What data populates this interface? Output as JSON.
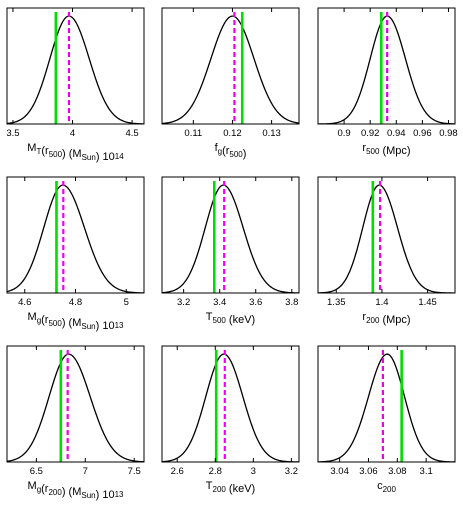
{
  "chart_data": [
    {
      "type": "line",
      "xlabel": "M_T(r_500) (M_Sun) 10^14",
      "xlabel_parts": [
        {
          "t": "M"
        },
        {
          "t": "T",
          "s": "sub"
        },
        {
          "t": "(r"
        },
        {
          "t": "500",
          "s": "sub"
        },
        {
          "t": ")  (M"
        },
        {
          "t": "Sun",
          "s": "sub"
        },
        {
          "t": ")  10"
        },
        {
          "t": "14",
          "s": "exp"
        }
      ],
      "xlim": [
        3.45,
        4.6
      ],
      "xticks": [
        3.5,
        4,
        4.5
      ],
      "xtick_labels": [
        "3.5",
        "4",
        "4.5"
      ],
      "peak_x": 3.97,
      "sigma_left": 0.16,
      "sigma_right": 0.17,
      "green_line_x": 3.86,
      "magenta_line_x": 3.97
    },
    {
      "type": "line",
      "xlabel": "f_g(r_500)",
      "xlabel_parts": [
        {
          "t": "f"
        },
        {
          "t": "g",
          "s": "sub"
        },
        {
          "t": "(r"
        },
        {
          "t": "500",
          "s": "sub"
        },
        {
          "t": ")"
        }
      ],
      "xlim": [
        0.102,
        0.137
      ],
      "xticks": [
        0.11,
        0.12,
        0.13
      ],
      "xtick_labels": [
        "0.11",
        "0.12",
        "0.13"
      ],
      "peak_x": 0.12,
      "sigma_left": 0.0055,
      "sigma_right": 0.0055,
      "green_line_x": 0.1225,
      "magenta_line_x": 0.1205
    },
    {
      "type": "line",
      "xlabel": "r_500 (Mpc)",
      "xlabel_parts": [
        {
          "t": "r"
        },
        {
          "t": "500",
          "s": "sub"
        },
        {
          "t": "  (Mpc)"
        }
      ],
      "xlim": [
        0.88,
        0.985
      ],
      "xticks": [
        0.9,
        0.92,
        0.94,
        0.96,
        0.98
      ],
      "xtick_labels": [
        "0.9",
        "0.92",
        "0.94",
        "0.96",
        "0.98"
      ],
      "peak_x": 0.933,
      "sigma_left": 0.013,
      "sigma_right": 0.014,
      "green_line_x": 0.9285,
      "magenta_line_x": 0.933
    },
    {
      "type": "line",
      "xlabel": "M_g(r_500) (M_Sun) 10^13",
      "xlabel_parts": [
        {
          "t": "M"
        },
        {
          "t": "g",
          "s": "sub"
        },
        {
          "t": "(r"
        },
        {
          "t": "500",
          "s": "sub"
        },
        {
          "t": ")  (M"
        },
        {
          "t": "Sun",
          "s": "sub"
        },
        {
          "t": ")  10"
        },
        {
          "t": "13",
          "s": "exp"
        }
      ],
      "xlim": [
        4.53,
        5.07
      ],
      "xticks": [
        4.6,
        4.8,
        5
      ],
      "xtick_labels": [
        "4.6",
        "4.8",
        "5"
      ],
      "peak_x": 4.75,
      "sigma_left": 0.075,
      "sigma_right": 0.085,
      "green_line_x": 4.725,
      "magenta_line_x": 4.752
    },
    {
      "type": "line",
      "xlabel": "T_500 (keV)",
      "xlabel_parts": [
        {
          "t": "T"
        },
        {
          "t": "500",
          "s": "sub"
        },
        {
          "t": "  (keV)"
        }
      ],
      "xlim": [
        3.08,
        3.84
      ],
      "xticks": [
        3.2,
        3.4,
        3.6,
        3.8
      ],
      "xtick_labels": [
        "3.2",
        "3.4",
        "3.6",
        "3.8"
      ],
      "peak_x": 3.42,
      "sigma_left": 0.1,
      "sigma_right": 0.11,
      "green_line_x": 3.37,
      "magenta_line_x": 3.425
    },
    {
      "type": "line",
      "xlabel": "r_200 (Mpc)",
      "xlabel_parts": [
        {
          "t": "r"
        },
        {
          "t": "200",
          "s": "sub"
        },
        {
          "t": "  (Mpc)"
        }
      ],
      "xlim": [
        1.33,
        1.48
      ],
      "xticks": [
        1.35,
        1.4,
        1.45
      ],
      "xtick_labels": [
        "1.35",
        "1.4",
        "1.45"
      ],
      "peak_x": 1.397,
      "sigma_left": 0.018,
      "sigma_right": 0.02,
      "green_line_x": 1.39,
      "magenta_line_x": 1.398
    },
    {
      "type": "line",
      "xlabel": "M_g(r_200) (M_Sun) 10^13",
      "xlabel_parts": [
        {
          "t": "M"
        },
        {
          "t": "g",
          "s": "sub"
        },
        {
          "t": "(r"
        },
        {
          "t": "200",
          "s": "sub"
        },
        {
          "t": ")  (M"
        },
        {
          "t": "Sun",
          "s": "sub"
        },
        {
          "t": ")  10"
        },
        {
          "t": "13",
          "s": "exp"
        }
      ],
      "xlim": [
        6.2,
        7.6
      ],
      "xticks": [
        6.5,
        7,
        7.5
      ],
      "xtick_labels": [
        "6.5",
        "7",
        "7.5"
      ],
      "peak_x": 6.83,
      "sigma_left": 0.2,
      "sigma_right": 0.22,
      "green_line_x": 6.75,
      "magenta_line_x": 6.82
    },
    {
      "type": "line",
      "xlabel": "T_200 (keV)",
      "xlabel_parts": [
        {
          "t": "T"
        },
        {
          "t": "200",
          "s": "sub"
        },
        {
          "t": "  (keV)"
        }
      ],
      "xlim": [
        2.52,
        3.24
      ],
      "xticks": [
        2.6,
        2.8,
        3,
        3.2
      ],
      "xtick_labels": [
        "2.6",
        "2.8",
        "3",
        "3.2"
      ],
      "peak_x": 2.845,
      "sigma_left": 0.095,
      "sigma_right": 0.1,
      "green_line_x": 2.805,
      "magenta_line_x": 2.85
    },
    {
      "type": "line",
      "xlabel": "c_200",
      "xlabel_parts": [
        {
          "t": "c"
        },
        {
          "t": "200",
          "s": "sub"
        }
      ],
      "xlim": [
        3.025,
        3.12
      ],
      "xticks": [
        3.04,
        3.06,
        3.08,
        3.1
      ],
      "xtick_labels": [
        "3.04",
        "3.06",
        "3.08",
        "3.1"
      ],
      "peak_x": 3.073,
      "sigma_left": 0.013,
      "sigma_right": 0.012,
      "green_line_x": 3.083,
      "magenta_line_x": 3.07
    }
  ],
  "colors": {
    "curve": "#000000",
    "green_line": "#00dd00",
    "magenta_line": "#ee00ee",
    "frame": "#000000"
  }
}
